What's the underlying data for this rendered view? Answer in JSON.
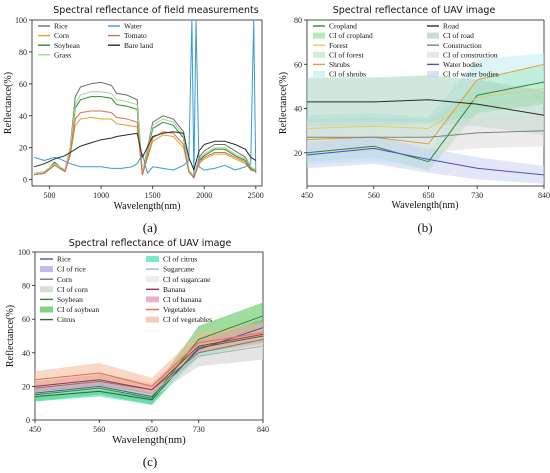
{
  "chart_data": [
    {
      "id": "a",
      "type": "line",
      "title": "Spectral reflectance of field measurements",
      "xlabel": "Wavelength(nm)",
      "ylabel": "Reflectance(%)",
      "caption": "(a)",
      "xlim": [
        330,
        2560
      ],
      "ylim": [
        -4,
        100
      ],
      "xticks": [
        500,
        1000,
        1500,
        2000,
        2500
      ],
      "yticks": [
        0,
        20,
        40,
        60,
        80,
        100
      ],
      "legend_placement": "top-left",
      "legend_columns": 2,
      "grid": false,
      "series": [
        {
          "name": "Rice",
          "color": "#6e6e6e",
          "x": [
            350,
            450,
            550,
            650,
            700,
            750,
            800,
            900,
            1000,
            1100,
            1150,
            1250,
            1350,
            1400,
            1500,
            1600,
            1700,
            1800,
            1850,
            1900,
            1950,
            2000,
            2100,
            2200,
            2300,
            2400,
            2450,
            2500
          ],
          "y": [
            4,
            5,
            10,
            6,
            20,
            52,
            58,
            60,
            61,
            59,
            54,
            53,
            50,
            4,
            36,
            40,
            38,
            30,
            6,
            2,
            14,
            18,
            22,
            22,
            18,
            14,
            8,
            6
          ]
        },
        {
          "name": "Corn",
          "color": "#e0a030",
          "x": [
            350,
            450,
            550,
            650,
            700,
            750,
            800,
            900,
            1000,
            1100,
            1150,
            1250,
            1350,
            1400,
            1500,
            1600,
            1700,
            1800,
            1850,
            1900,
            1950,
            2000,
            2100,
            2200,
            2300,
            2400,
            2450,
            2500
          ],
          "y": [
            3,
            4,
            9,
            5,
            15,
            34,
            38,
            39,
            38,
            38,
            35,
            34,
            33,
            3,
            24,
            28,
            27,
            20,
            5,
            1,
            10,
            13,
            16,
            16,
            13,
            10,
            6,
            5
          ]
        },
        {
          "name": "Soybean",
          "color": "#2e8a2e",
          "x": [
            350,
            450,
            550,
            650,
            700,
            750,
            800,
            900,
            1000,
            1100,
            1150,
            1250,
            1350,
            1400,
            1500,
            1600,
            1700,
            1800,
            1850,
            1900,
            1950,
            2000,
            2100,
            2200,
            2300,
            2400,
            2450,
            2500
          ],
          "y": [
            3,
            4,
            11,
            5,
            18,
            45,
            50,
            52,
            52,
            51,
            47,
            46,
            44,
            3,
            32,
            36,
            34,
            26,
            5,
            1,
            12,
            15,
            19,
            19,
            15,
            12,
            7,
            5
          ]
        },
        {
          "name": "Grass",
          "color": "#a8d890",
          "x": [
            350,
            450,
            550,
            650,
            700,
            750,
            800,
            900,
            1000,
            1100,
            1150,
            1250,
            1350,
            1400,
            1500,
            1600,
            1700,
            1800,
            1850,
            1900,
            1950,
            2000,
            2100,
            2200,
            2300,
            2400,
            2450,
            2500
          ],
          "y": [
            4,
            5,
            10,
            6,
            19,
            47,
            53,
            55,
            55,
            54,
            50,
            49,
            47,
            4,
            34,
            38,
            36,
            28,
            6,
            2,
            13,
            16,
            20,
            20,
            16,
            13,
            8,
            6
          ]
        },
        {
          "name": "Water",
          "color": "#3a9ad8",
          "x": [
            350,
            400,
            450,
            500,
            550,
            600,
            700,
            800,
            900,
            1000,
            1100,
            1200,
            1300,
            1350,
            1400,
            1450,
            1500,
            1600,
            1700,
            1800,
            1850,
            1880,
            1900,
            1920,
            1950,
            2000,
            2100,
            2200,
            2300,
            2400,
            2450,
            2480,
            2500
          ],
          "y": [
            14,
            13,
            12,
            13,
            14,
            13,
            10,
            8,
            8,
            8,
            7,
            7,
            8,
            10,
            16,
            4,
            8,
            7,
            6,
            9,
            12,
            100,
            2,
            100,
            8,
            6,
            7,
            9,
            6,
            8,
            10,
            100,
            4
          ]
        },
        {
          "name": "Tomato",
          "color": "#d87050",
          "x": [
            350,
            450,
            550,
            650,
            700,
            750,
            800,
            900,
            1000,
            1100,
            1150,
            1250,
            1350,
            1400,
            1500,
            1600,
            1700,
            1800,
            1850,
            1900,
            1950,
            2000,
            2100,
            2200,
            2300,
            2400,
            2450,
            2500
          ],
          "y": [
            3,
            4,
            9,
            5,
            16,
            38,
            42,
            43,
            43,
            42,
            39,
            38,
            36,
            3,
            26,
            30,
            29,
            22,
            5,
            1,
            11,
            14,
            17,
            17,
            14,
            11,
            6,
            5
          ]
        },
        {
          "name": "Bare land",
          "color": "#2a2a2a",
          "x": [
            350,
            450,
            550,
            650,
            700,
            750,
            800,
            900,
            1000,
            1100,
            1150,
            1250,
            1350,
            1400,
            1500,
            1600,
            1700,
            1800,
            1850,
            1900,
            1950,
            2000,
            2100,
            2200,
            2300,
            2400,
            2450,
            2500
          ],
          "y": [
            8,
            10,
            13,
            15,
            17,
            19,
            21,
            23,
            25,
            26,
            27,
            28,
            29,
            14,
            27,
            29,
            30,
            29,
            14,
            6,
            18,
            22,
            24,
            24,
            22,
            19,
            14,
            12
          ]
        }
      ]
    },
    {
      "id": "b",
      "type": "line",
      "title": "Spectral reflectance of UAV image",
      "xlabel": "Wavelength(nm)",
      "ylabel": "Reflectance(%)",
      "caption": "(b)",
      "x": [
        450,
        560,
        650,
        730,
        840
      ],
      "xlim": [
        450,
        840
      ],
      "ylim": [
        5,
        80
      ],
      "yticks": [
        20,
        40,
        60,
        80
      ],
      "legend_placement": "top",
      "legend_columns": 2,
      "grid": false,
      "series": [
        {
          "name": "Cropland",
          "color": "#2e8a2e",
          "values": [
            20,
            23,
            16,
            46,
            52
          ]
        },
        {
          "name": "CI of cropland",
          "color": "#9adf9a",
          "band": true,
          "lower": [
            16,
            18,
            12,
            38,
            42
          ],
          "upper": [
            25,
            28,
            20,
            53,
            60
          ]
        },
        {
          "name": "Forest",
          "color": "#e0d060",
          "values": [
            31,
            32,
            31,
            45,
            49
          ]
        },
        {
          "name": "CI of forest",
          "color": "#b8e8b8",
          "band": true,
          "lower": [
            27,
            28,
            27,
            40,
            44
          ],
          "upper": [
            35,
            36,
            35,
            50,
            54
          ]
        },
        {
          "name": "Shrubs",
          "color": "#e0a030",
          "values": [
            26,
            27,
            24,
            53,
            60
          ]
        },
        {
          "name": "CI of shrubs",
          "color": "#bfeef0",
          "band": true,
          "lower": [
            15,
            16,
            14,
            42,
            48
          ],
          "upper": [
            37,
            38,
            36,
            62,
            65
          ]
        },
        {
          "name": "Road",
          "color": "#2a2a2a",
          "values": [
            43,
            43,
            44,
            42,
            37
          ]
        },
        {
          "name": "CI of road",
          "color": "#a8d4c0",
          "band": true,
          "lower": [
            32,
            32,
            33,
            32,
            28
          ],
          "upper": [
            54,
            54,
            55,
            53,
            48
          ]
        },
        {
          "name": "Construction",
          "color": "#808080",
          "values": [
            27,
            27,
            27,
            29,
            30
          ]
        },
        {
          "name": "CI of construction",
          "color": "#dddddd",
          "band": true,
          "lower": [
            20,
            20,
            20,
            22,
            23
          ],
          "upper": [
            34,
            34,
            34,
            36,
            37
          ]
        },
        {
          "name": "Water bodies",
          "color": "#5050b8",
          "values": [
            19,
            22,
            17,
            13,
            10
          ]
        },
        {
          "name": "CI of water bodies",
          "color": "#c8d4f4",
          "band": true,
          "lower": [
            13,
            15,
            11,
            8,
            6
          ],
          "upper": [
            24,
            28,
            22,
            18,
            14
          ]
        }
      ]
    },
    {
      "id": "c",
      "type": "line",
      "title": "Spectral reflectance of UAV image",
      "xlabel": "Wavelength(nm)",
      "ylabel": "Reflectance(%)",
      "caption": "(c)",
      "x": [
        450,
        560,
        650,
        730,
        840
      ],
      "xlim": [
        450,
        840
      ],
      "ylim": [
        0,
        100
      ],
      "yticks": [
        0,
        20,
        40,
        60,
        80,
        100
      ],
      "legend_placement": "top",
      "legend_columns": 2,
      "grid": false,
      "series": [
        {
          "name": "Rice",
          "color": "#5050b8",
          "values": [
            16,
            20,
            14,
            42,
            55
          ]
        },
        {
          "name": "CI of rice",
          "color": "#a0a0e8",
          "band": true,
          "lower": [
            13,
            17,
            11,
            37,
            50
          ],
          "upper": [
            19,
            23,
            17,
            47,
            60
          ]
        },
        {
          "name": "Corn",
          "color": "#7a7a7a",
          "values": [
            19,
            23,
            18,
            40,
            48
          ]
        },
        {
          "name": "CI of corn",
          "color": "#cccccc",
          "band": true,
          "lower": [
            15,
            18,
            14,
            32,
            36
          ],
          "upper": [
            23,
            28,
            22,
            48,
            58
          ]
        },
        {
          "name": "Soybean",
          "color": "#2e8a2e",
          "values": [
            15,
            19,
            13,
            48,
            62
          ]
        },
        {
          "name": "CI of soybean",
          "color": "#50c050",
          "band": true,
          "lower": [
            11,
            15,
            9,
            40,
            52
          ],
          "upper": [
            19,
            23,
            17,
            56,
            70
          ]
        },
        {
          "name": "Citrus",
          "color": "#2e6e2e",
          "values": [
            14,
            17,
            12,
            43,
            50
          ]
        },
        {
          "name": "CI of citrus",
          "color": "#40e0b0",
          "band": true,
          "lower": [
            11,
            14,
            9,
            38,
            45
          ],
          "upper": [
            17,
            20,
            15,
            48,
            55
          ]
        },
        {
          "name": "Sugarcane",
          "color": "#b0b0b0",
          "values": [
            17,
            21,
            16,
            38,
            44
          ]
        },
        {
          "name": "CI of sugarcane",
          "color": "#e6e6e6",
          "band": true,
          "lower": [
            14,
            18,
            13,
            32,
            36
          ],
          "upper": [
            20,
            24,
            19,
            44,
            52
          ]
        },
        {
          "name": "Banana",
          "color": "#a03050",
          "values": [
            20,
            24,
            18,
            44,
            51
          ]
        },
        {
          "name": "CI of banana",
          "color": "#e890a8",
          "band": true,
          "lower": [
            17,
            21,
            15,
            40,
            46
          ],
          "upper": [
            23,
            27,
            21,
            48,
            56
          ]
        },
        {
          "name": "Vegetables",
          "color": "#e07050",
          "values": [
            24,
            28,
            20,
            46,
            52
          ]
        },
        {
          "name": "CI of vegetables",
          "color": "#f4b898",
          "band": true,
          "lower": [
            20,
            24,
            16,
            40,
            46
          ],
          "upper": [
            29,
            34,
            25,
            52,
            58
          ]
        }
      ]
    }
  ]
}
